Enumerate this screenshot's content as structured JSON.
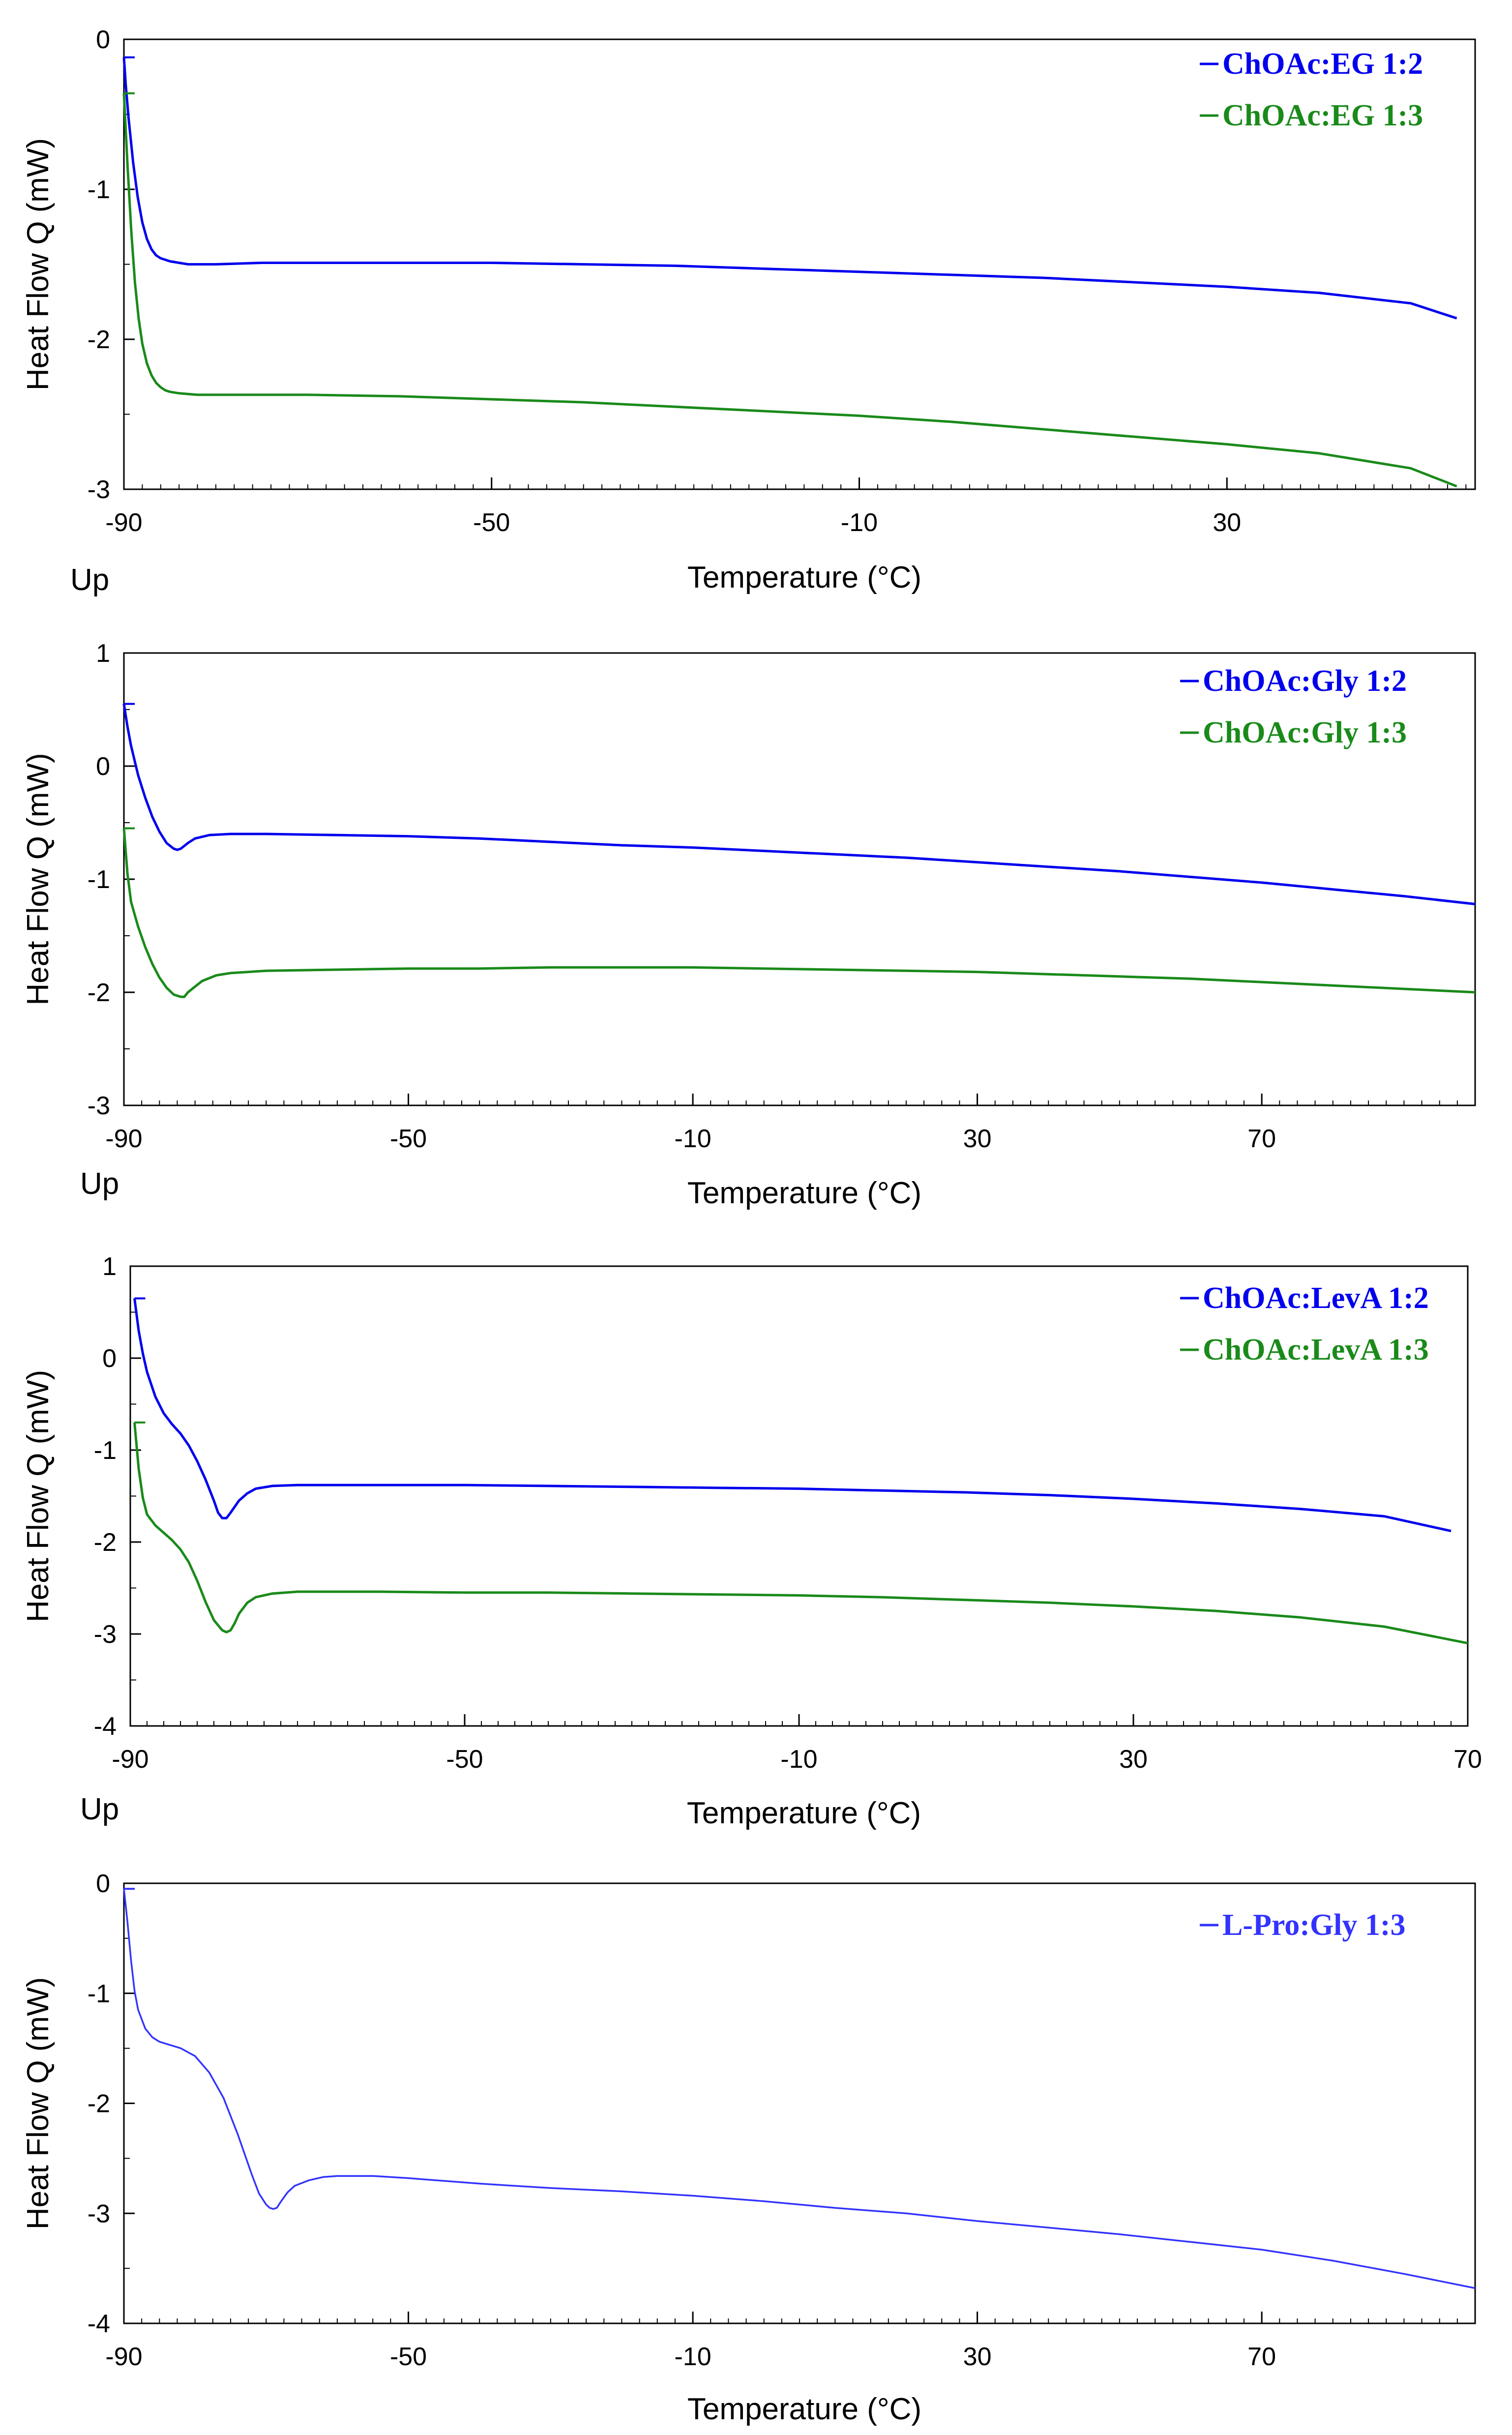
{
  "chart_data": [
    {
      "type": "line",
      "xlabel": "Temperature (°C)",
      "ylabel": "Heat Flow Q (mW)",
      "corner_label": "Up",
      "xlim": [
        -90,
        57
      ],
      "ylim": [
        -3,
        0
      ],
      "xticks": [
        -90,
        -50,
        -10,
        30
      ],
      "xtick_labels": [
        "-90",
        "-50",
        "-10",
        "30"
      ],
      "yticks": [
        0,
        -1,
        -2,
        -3
      ],
      "ytick_labels": [
        "0",
        "-1",
        "-2",
        "-3"
      ],
      "grid": false,
      "legend": "top-right",
      "series": [
        {
          "name": "ChOAc:EG 1:2",
          "color": "#0000ee",
          "x": [
            -90,
            -89.8,
            -89.5,
            -89,
            -88.5,
            -88,
            -87.5,
            -87,
            -86.5,
            -86,
            -85.5,
            -85,
            -84,
            -83,
            -82,
            -80,
            -75,
            -70,
            -60,
            -50,
            -40,
            -30,
            -20,
            -10,
            0,
            10,
            20,
            30,
            40,
            50,
            55
          ],
          "y": [
            -0.12,
            -0.3,
            -0.52,
            -0.82,
            -1.05,
            -1.22,
            -1.33,
            -1.4,
            -1.44,
            -1.46,
            -1.47,
            -1.48,
            -1.49,
            -1.5,
            -1.5,
            -1.5,
            -1.49,
            -1.49,
            -1.49,
            -1.49,
            -1.5,
            -1.51,
            -1.53,
            -1.55,
            -1.57,
            -1.59,
            -1.62,
            -1.65,
            -1.69,
            -1.76,
            -1.86
          ]
        },
        {
          "name": "ChOAc:EG 1:3",
          "color": "#1a8a1a",
          "x": [
            -90,
            -89.6,
            -89.2,
            -88.8,
            -88.4,
            -88,
            -87.5,
            -87,
            -86.5,
            -86,
            -85.5,
            -85,
            -84,
            -82,
            -80,
            -75,
            -70,
            -60,
            -50,
            -40,
            -30,
            -20,
            -10,
            0,
            10,
            20,
            30,
            40,
            50,
            55
          ],
          "y": [
            -0.36,
            -0.85,
            -1.28,
            -1.62,
            -1.86,
            -2.03,
            -2.16,
            -2.24,
            -2.29,
            -2.32,
            -2.34,
            -2.35,
            -2.36,
            -2.37,
            -2.37,
            -2.37,
            -2.37,
            -2.38,
            -2.4,
            -2.42,
            -2.45,
            -2.48,
            -2.51,
            -2.55,
            -2.6,
            -2.65,
            -2.7,
            -2.76,
            -2.86,
            -2.98
          ]
        }
      ]
    },
    {
      "type": "line",
      "xlabel": "Temperature (°C)",
      "ylabel": "Heat Flow Q (mW)",
      "corner_label": "Up",
      "xlim": [
        -90,
        100
      ],
      "ylim": [
        -3,
        1
      ],
      "xticks": [
        -90,
        -50,
        -10,
        30,
        70
      ],
      "xtick_labels": [
        "-90",
        "-50",
        "-10",
        "30",
        "70"
      ],
      "yticks": [
        1,
        0,
        -1,
        -2,
        -3
      ],
      "ytick_labels": [
        "1",
        "0",
        "-1",
        "-2",
        "-3"
      ],
      "grid": false,
      "legend": "top-right",
      "series": [
        {
          "name": "ChOAc:Gly 1:2",
          "color": "#0000ee",
          "x": [
            -90,
            -89.5,
            -89,
            -88,
            -87,
            -86,
            -85,
            -84,
            -83,
            -82.5,
            -82,
            -81,
            -80,
            -78,
            -75,
            -70,
            -60,
            -50,
            -40,
            -30,
            -20,
            -10,
            0,
            10,
            20,
            30,
            40,
            50,
            60,
            70,
            80,
            90,
            100
          ],
          "y": [
            0.55,
            0.35,
            0.18,
            -0.08,
            -0.28,
            -0.45,
            -0.58,
            -0.68,
            -0.73,
            -0.74,
            -0.73,
            -0.68,
            -0.64,
            -0.61,
            -0.6,
            -0.6,
            -0.61,
            -0.62,
            -0.64,
            -0.67,
            -0.7,
            -0.72,
            -0.75,
            -0.78,
            -0.81,
            -0.85,
            -0.89,
            -0.93,
            -0.98,
            -1.03,
            -1.09,
            -1.15,
            -1.22
          ]
        },
        {
          "name": "ChOAc:Gly 1:3",
          "color": "#1a8a1a",
          "x": [
            -90,
            -89.5,
            -89,
            -88,
            -87,
            -86,
            -85,
            -84,
            -83,
            -82,
            -81.5,
            -81,
            -80,
            -79,
            -77,
            -75,
            -70,
            -60,
            -50,
            -40,
            -30,
            -20,
            -10,
            0,
            10,
            20,
            30,
            40,
            50,
            60,
            70,
            80,
            90,
            100
          ],
          "y": [
            -0.55,
            -0.95,
            -1.2,
            -1.42,
            -1.6,
            -1.75,
            -1.87,
            -1.96,
            -2.02,
            -2.04,
            -2.04,
            -2.0,
            -1.95,
            -1.9,
            -1.85,
            -1.83,
            -1.81,
            -1.8,
            -1.79,
            -1.79,
            -1.78,
            -1.78,
            -1.78,
            -1.79,
            -1.8,
            -1.81,
            -1.82,
            -1.84,
            -1.86,
            -1.88,
            -1.91,
            -1.94,
            -1.97,
            -2.0
          ]
        }
      ]
    },
    {
      "type": "line",
      "xlabel": "Temperature (°C)",
      "ylabel": "Heat Flow Q (mW)",
      "corner_label": "Up",
      "xlim": [
        -90,
        70
      ],
      "ylim": [
        -4,
        1
      ],
      "xticks": [
        -90,
        -50,
        -10,
        30,
        70
      ],
      "xtick_labels": [
        "-90",
        "-50",
        "-10",
        "30",
        "70"
      ],
      "yticks": [
        1,
        0,
        -1,
        -2,
        -3,
        -4
      ],
      "ytick_labels": [
        "1",
        "0",
        "-1",
        "-2",
        "-3",
        "-4"
      ],
      "grid": false,
      "legend": "top-right",
      "series": [
        {
          "name": "ChOAc:LevA 1:2",
          "color": "#0000ee",
          "x": [
            -89.5,
            -89,
            -88.5,
            -88,
            -87,
            -86,
            -85,
            -84,
            -83,
            -82,
            -81,
            -80,
            -79.5,
            -79,
            -78.5,
            -78,
            -77,
            -76,
            -75,
            -73,
            -70,
            -65,
            -60,
            -50,
            -40,
            -30,
            -20,
            -10,
            0,
            10,
            20,
            30,
            40,
            50,
            60,
            68
          ],
          "y": [
            0.65,
            0.3,
            0.05,
            -0.15,
            -0.42,
            -0.6,
            -0.72,
            -0.82,
            -0.95,
            -1.12,
            -1.32,
            -1.55,
            -1.68,
            -1.74,
            -1.74,
            -1.68,
            -1.55,
            -1.47,
            -1.42,
            -1.39,
            -1.38,
            -1.38,
            -1.38,
            -1.38,
            -1.39,
            -1.4,
            -1.41,
            -1.42,
            -1.44,
            -1.46,
            -1.49,
            -1.53,
            -1.58,
            -1.64,
            -1.72,
            -1.88
          ]
        },
        {
          "name": "ChOAc:LevA 1:3",
          "color": "#1a8a1a",
          "x": [
            -89.5,
            -89,
            -88.5,
            -88,
            -87,
            -86,
            -85,
            -84,
            -83,
            -82,
            -81,
            -80,
            -79,
            -78.5,
            -78,
            -77.5,
            -77,
            -76,
            -75,
            -73,
            -70,
            -65,
            -60,
            -50,
            -40,
            -30,
            -20,
            -10,
            0,
            10,
            20,
            30,
            40,
            50,
            60,
            70
          ],
          "y": [
            -0.7,
            -1.2,
            -1.52,
            -1.7,
            -1.82,
            -1.9,
            -1.98,
            -2.08,
            -2.22,
            -2.42,
            -2.65,
            -2.85,
            -2.96,
            -2.98,
            -2.96,
            -2.88,
            -2.78,
            -2.66,
            -2.6,
            -2.56,
            -2.54,
            -2.54,
            -2.54,
            -2.55,
            -2.55,
            -2.56,
            -2.57,
            -2.58,
            -2.6,
            -2.63,
            -2.66,
            -2.7,
            -2.75,
            -2.82,
            -2.92,
            -3.1
          ]
        }
      ]
    },
    {
      "type": "line",
      "xlabel": "Temperature (°C)",
      "ylabel": "Heat Flow Q (mW)",
      "xlim": [
        -90,
        100
      ],
      "ylim": [
        -4,
        0
      ],
      "xticks": [
        -90,
        -50,
        -10,
        30,
        70
      ],
      "xtick_labels": [
        "-90",
        "-50",
        "-10",
        "30",
        "70"
      ],
      "yticks": [
        0,
        -1,
        -2,
        -3,
        -4
      ],
      "ytick_labels": [
        "0",
        "-1",
        "-2",
        "-3",
        "-4"
      ],
      "grid": false,
      "legend": "top-right",
      "series": [
        {
          "name": "L-Pro:Gly 1:3",
          "color": "#3333ff",
          "x": [
            -90,
            -89.5,
            -89,
            -88.5,
            -88,
            -87,
            -86,
            -85,
            -84,
            -83,
            -82,
            -80,
            -78,
            -76,
            -74,
            -72,
            -71,
            -70,
            -69.5,
            -69,
            -68.5,
            -68,
            -67,
            -66,
            -64,
            -62,
            -60,
            -55,
            -50,
            -40,
            -30,
            -20,
            -10,
            0,
            10,
            20,
            30,
            40,
            50,
            60,
            70,
            80,
            90,
            100
          ],
          "y": [
            -0.05,
            -0.35,
            -0.7,
            -0.98,
            -1.15,
            -1.32,
            -1.4,
            -1.44,
            -1.46,
            -1.48,
            -1.5,
            -1.57,
            -1.72,
            -1.95,
            -2.28,
            -2.65,
            -2.82,
            -2.92,
            -2.95,
            -2.96,
            -2.95,
            -2.9,
            -2.81,
            -2.75,
            -2.7,
            -2.67,
            -2.66,
            -2.66,
            -2.68,
            -2.73,
            -2.77,
            -2.8,
            -2.84,
            -2.89,
            -2.95,
            -3.0,
            -3.07,
            -3.13,
            -3.19,
            -3.26,
            -3.33,
            -3.43,
            -3.55,
            -3.68
          ]
        }
      ]
    }
  ]
}
